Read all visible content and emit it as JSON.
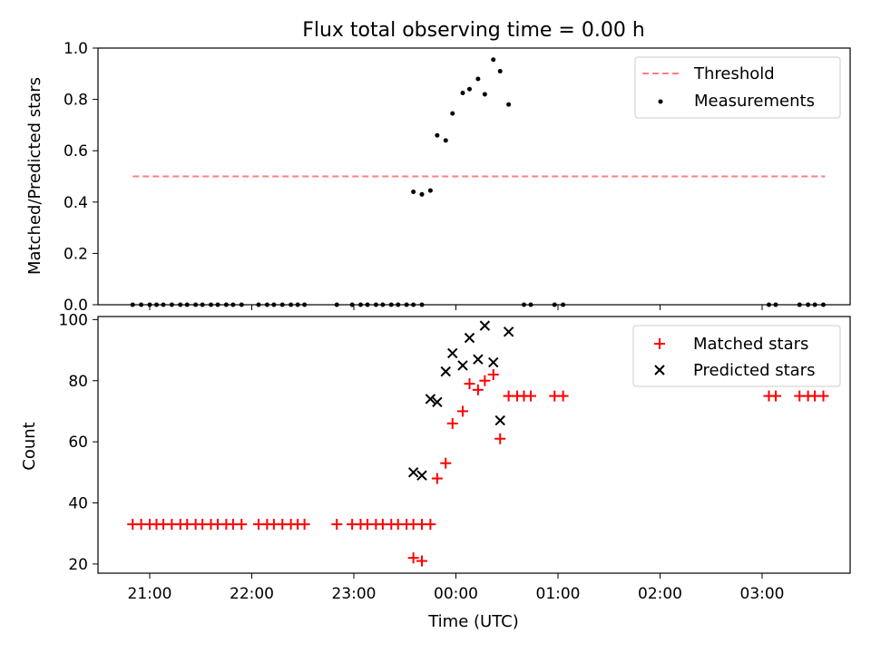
{
  "figure": {
    "title": "Flux total observing time = 0.00 h",
    "xlabel": "Time (UTC)",
    "xticks": [
      "21:00",
      "22:00",
      "23:00",
      "00:00",
      "01:00",
      "02:00",
      "03:00"
    ]
  },
  "chart_data": [
    {
      "type": "scatter",
      "ylabel": "Matched/Predicted stars",
      "ylim": [
        0,
        1.0
      ],
      "xlim": [
        "20:30",
        "03:55"
      ],
      "yticks": [
        "0.0",
        "0.2",
        "0.4",
        "0.6",
        "0.8",
        "1.0"
      ],
      "legend": {
        "placement": "top-right",
        "entries": [
          "Threshold",
          "Measurements"
        ]
      },
      "threshold": {
        "name": "Threshold",
        "value": 0.5,
        "x_range": [
          "20:50",
          "03:37"
        ],
        "color": "#ff7f7f",
        "style": "dashed"
      },
      "series": [
        {
          "name": "Measurements",
          "color": "#000000",
          "points": [
            [
              "20:50",
              0
            ],
            [
              "20:55",
              0
            ],
            [
              "21:00",
              0
            ],
            [
              "21:04",
              0
            ],
            [
              "21:08",
              0
            ],
            [
              "21:13",
              0
            ],
            [
              "21:18",
              0
            ],
            [
              "21:22",
              0
            ],
            [
              "21:27",
              0
            ],
            [
              "21:31",
              0
            ],
            [
              "21:36",
              0
            ],
            [
              "21:40",
              0
            ],
            [
              "21:45",
              0
            ],
            [
              "21:49",
              0
            ],
            [
              "21:54",
              0
            ],
            [
              "22:04",
              0
            ],
            [
              "22:09",
              0
            ],
            [
              "22:13",
              0
            ],
            [
              "22:18",
              0
            ],
            [
              "22:23",
              0
            ],
            [
              "22:27",
              0
            ],
            [
              "22:31",
              0
            ],
            [
              "22:50",
              0
            ],
            [
              "22:59",
              0
            ],
            [
              "23:04",
              0
            ],
            [
              "23:08",
              0
            ],
            [
              "23:13",
              0
            ],
            [
              "23:17",
              0
            ],
            [
              "23:22",
              0
            ],
            [
              "23:26",
              0
            ],
            [
              "23:31",
              0
            ],
            [
              "23:35",
              0
            ],
            [
              "23:40",
              0
            ],
            [
              "23:35",
              0.44
            ],
            [
              "23:40",
              0.43
            ],
            [
              "23:45",
              0.445
            ],
            [
              "23:49",
              0.66
            ],
            [
              "23:54",
              0.64
            ],
            [
              "23:58",
              0.745
            ],
            [
              "00:04",
              0.825
            ],
            [
              "00:08",
              0.84
            ],
            [
              "00:13",
              0.88
            ],
            [
              "00:17",
              0.82
            ],
            [
              "00:22",
              0.955
            ],
            [
              "00:26",
              0.91
            ],
            [
              "00:31",
              0.78
            ],
            [
              "00:40",
              0
            ],
            [
              "00:44",
              0
            ],
            [
              "00:58",
              0
            ],
            [
              "01:03",
              0
            ],
            [
              "03:04",
              0
            ],
            [
              "03:08",
              0
            ],
            [
              "03:22",
              0
            ],
            [
              "03:27",
              0
            ],
            [
              "03:31",
              0
            ],
            [
              "03:36",
              0
            ]
          ]
        }
      ]
    },
    {
      "type": "scatter",
      "ylabel": "Count",
      "ylim": [
        17,
        101
      ],
      "xlim": [
        "20:30",
        "03:55"
      ],
      "yticks": [
        "20",
        "40",
        "60",
        "80",
        "100"
      ],
      "legend": {
        "placement": "top-right",
        "entries": [
          "Matched stars",
          "Predicted stars"
        ]
      },
      "series": [
        {
          "name": "Matched stars",
          "color": "#ff0000",
          "marker": "plus",
          "points": [
            [
              "20:50",
              33
            ],
            [
              "20:55",
              33
            ],
            [
              "21:00",
              33
            ],
            [
              "21:04",
              33
            ],
            [
              "21:08",
              33
            ],
            [
              "21:13",
              33
            ],
            [
              "21:18",
              33
            ],
            [
              "21:22",
              33
            ],
            [
              "21:27",
              33
            ],
            [
              "21:31",
              33
            ],
            [
              "21:36",
              33
            ],
            [
              "21:40",
              33
            ],
            [
              "21:45",
              33
            ],
            [
              "21:49",
              33
            ],
            [
              "21:54",
              33
            ],
            [
              "22:04",
              33
            ],
            [
              "22:09",
              33
            ],
            [
              "22:13",
              33
            ],
            [
              "22:18",
              33
            ],
            [
              "22:23",
              33
            ],
            [
              "22:27",
              33
            ],
            [
              "22:31",
              33
            ],
            [
              "22:50",
              33
            ],
            [
              "22:59",
              33
            ],
            [
              "23:04",
              33
            ],
            [
              "23:08",
              33
            ],
            [
              "23:13",
              33
            ],
            [
              "23:17",
              33
            ],
            [
              "23:22",
              33
            ],
            [
              "23:26",
              33
            ],
            [
              "23:31",
              33
            ],
            [
              "23:35",
              33
            ],
            [
              "23:40",
              33
            ],
            [
              "23:35",
              22
            ],
            [
              "23:40",
              21
            ],
            [
              "23:45",
              33
            ],
            [
              "23:49",
              48
            ],
            [
              "23:54",
              53
            ],
            [
              "23:58",
              66
            ],
            [
              "00:04",
              70
            ],
            [
              "00:08",
              79
            ],
            [
              "00:13",
              77
            ],
            [
              "00:17",
              80
            ],
            [
              "00:22",
              82
            ],
            [
              "00:26",
              61
            ],
            [
              "00:31",
              75
            ],
            [
              "00:36",
              75
            ],
            [
              "00:40",
              75
            ],
            [
              "00:44",
              75
            ],
            [
              "00:58",
              75
            ],
            [
              "01:03",
              75
            ],
            [
              "03:04",
              75
            ],
            [
              "03:08",
              75
            ],
            [
              "03:22",
              75
            ],
            [
              "03:27",
              75
            ],
            [
              "03:31",
              75
            ],
            [
              "03:36",
              75
            ]
          ]
        },
        {
          "name": "Predicted stars",
          "color": "#000000",
          "marker": "x",
          "points": [
            [
              "23:35",
              50
            ],
            [
              "23:40",
              49
            ],
            [
              "23:45",
              74
            ],
            [
              "23:49",
              73
            ],
            [
              "23:54",
              83
            ],
            [
              "23:58",
              89
            ],
            [
              "00:04",
              85
            ],
            [
              "00:08",
              94
            ],
            [
              "00:13",
              87
            ],
            [
              "00:17",
              98
            ],
            [
              "00:22",
              86
            ],
            [
              "00:26",
              67
            ],
            [
              "00:31",
              96
            ]
          ]
        }
      ]
    }
  ]
}
